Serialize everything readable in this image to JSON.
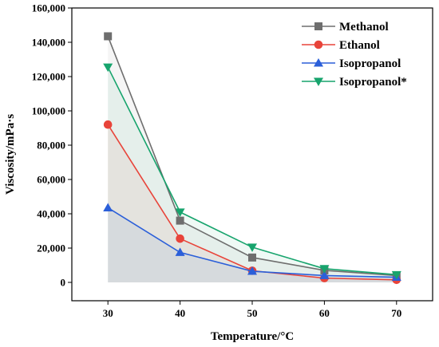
{
  "chart_data": {
    "type": "line",
    "xlabel": "Temperature/°C",
    "ylabel": "Viscosity/mPa·s",
    "x": [
      30,
      40,
      50,
      60,
      70
    ],
    "xlim": [
      25,
      75
    ],
    "ylim": [
      0,
      160000
    ],
    "x_ticks": [
      "30",
      "40",
      "50",
      "60",
      "70"
    ],
    "y_ticks": [
      "0",
      "20,000",
      "40,000",
      "60,000",
      "80,000",
      "100,000",
      "120,000",
      "140,000",
      "160,000"
    ],
    "grid": false,
    "legend_position": "top-right",
    "series": [
      {
        "name": "Methanol",
        "marker": "square",
        "color": "#6e6e6e",
        "values": [
          143500,
          36000,
          14500,
          7000,
          4000
        ]
      },
      {
        "name": "Ethanol",
        "marker": "circle",
        "color": "#e8443a",
        "values": [
          92000,
          25500,
          6800,
          2500,
          1500
        ]
      },
      {
        "name": "Isopropanol",
        "marker": "triangle-up",
        "color": "#2b5fd9",
        "values": [
          43500,
          17500,
          6500,
          4000,
          3000
        ]
      },
      {
        "name": "Isopropanol*",
        "marker": "triangle-down",
        "color": "#17a46d",
        "values": [
          125500,
          41000,
          20500,
          8000,
          4500
        ]
      }
    ]
  }
}
